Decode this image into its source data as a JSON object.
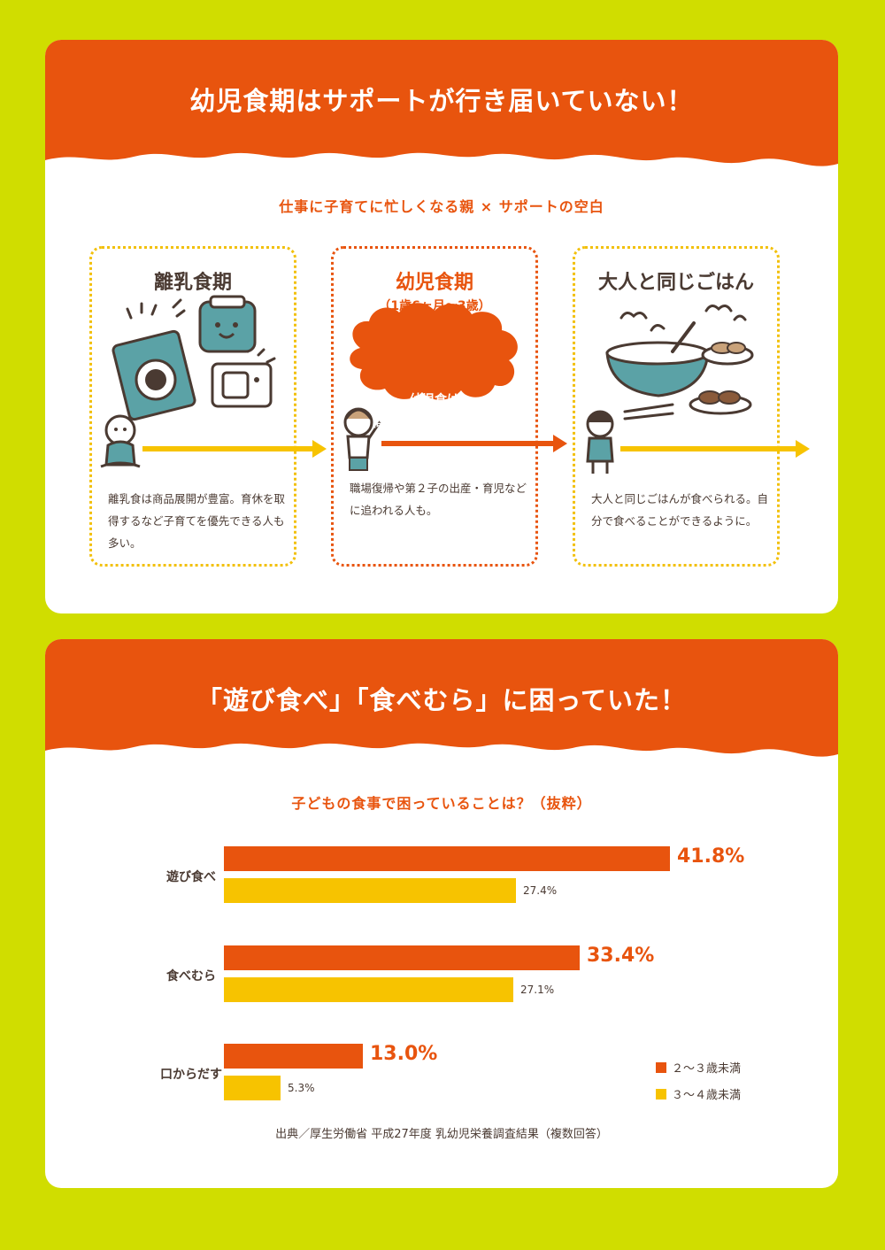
{
  "colors": {
    "page_bg": "#d0dd00",
    "orange": "#e8540e",
    "yellow": "#f7c300",
    "text": "#4a3a32"
  },
  "section1": {
    "title": "幼児食期はサポートが行き届いていない！",
    "subtitle": "仕事に子育てに忙しくなる親 × サポートの空白",
    "stages": [
      {
        "title": "離乳食期",
        "text": "離乳食は商品展開が豊富。育休を取得するなど子育てを優先できる人も多い。"
      },
      {
        "title": "幼児食期",
        "age": "（1歳6ヶ月〜3歳）",
        "bubble": [
          "幼児食は",
          "商品がほとんどない！"
        ],
        "text": "職場復帰や第２子の出産・育児などに追われる人も。"
      },
      {
        "title": "大人と同じごはん",
        "text": "大人と同じごはんが食べられる。自分で食べることができるように。"
      }
    ]
  },
  "section2": {
    "title": "「遊び食べ」「食べむら」に困っていた！",
    "subtitle": "子どもの食事で困っていることは？（抜粋）",
    "source": "出典／厚生労働省 平成27年度 乳幼児栄養調査結果（複数回答）"
  },
  "chart_data": {
    "type": "bar",
    "orientation": "horizontal",
    "title": "子どもの食事で困っていることは？（抜粋）",
    "categories": [
      "遊び食べ",
      "食べむら",
      "口からだす"
    ],
    "series": [
      {
        "name": "２〜３歳未満",
        "color": "#e8540e",
        "values": [
          41.8,
          33.4,
          13.0
        ],
        "labels": [
          "41.8%",
          "33.4%",
          "13.0%"
        ]
      },
      {
        "name": "３〜４歳未満",
        "color": "#f7c300",
        "values": [
          27.4,
          27.1,
          5.3
        ],
        "labels": [
          "27.4%",
          "27.1%",
          "5.3%"
        ]
      }
    ],
    "unit": "%",
    "legend_position": "bottom-right",
    "grid": false
  }
}
